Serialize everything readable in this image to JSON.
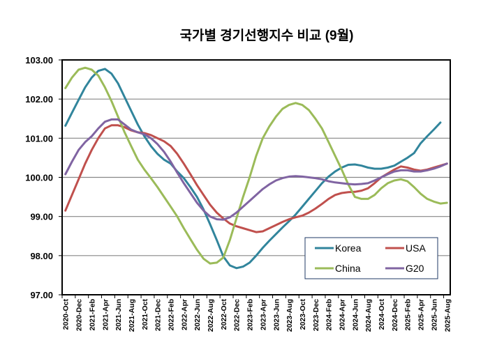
{
  "chart_data": {
    "type": "line",
    "title": "국가별 경기선행지수 비교 (9월)",
    "xlabel": "",
    "ylabel": "",
    "ylim": [
      97,
      103
    ],
    "yticks": [
      "97.00",
      "98.00",
      "99.00",
      "100.00",
      "101.00",
      "102.00",
      "103.00"
    ],
    "ytick_values": [
      97,
      98,
      99,
      100,
      101,
      102,
      103
    ],
    "grid": true,
    "legend_position": "bottom-right",
    "x": [
      "2020-Oct",
      "2020-Nov",
      "2020-Dec",
      "2021-Jan",
      "2021-Feb",
      "2021-Mar",
      "2021-Apr",
      "2021-May",
      "2021-Jun",
      "2021-Jul",
      "2021-Aug",
      "2021-Sep",
      "2021-Oct",
      "2021-Nov",
      "2021-Dec",
      "2022-Jan",
      "2022-Feb",
      "2022-Mar",
      "2022-Apr",
      "2022-May",
      "2022-Jun",
      "2022-Jul",
      "2022-Aug",
      "2022-Sep",
      "2022-Oct",
      "2022-Nov",
      "2022-Dec",
      "2023-Jan",
      "2023-Feb",
      "2023-Mar",
      "2023-Apr",
      "2023-May",
      "2023-Jun",
      "2023-Jul",
      "2023-Aug",
      "2023-Sep",
      "2023-Oct",
      "2023-Nov",
      "2023-Dec",
      "2024-Jan",
      "2024-Feb",
      "2024-Mar",
      "2024-Apr",
      "2024-May",
      "2024-Jun",
      "2024-Jul",
      "2024-Aug",
      "2024-Sep",
      "2024-Oct",
      "2024-Nov",
      "2024-Dec",
      "2025-Jan",
      "2025-Feb",
      "2025-Mar",
      "2025-Apr",
      "2025-May",
      "2025-Jun",
      "2025-Jul",
      "2025-Aug"
    ],
    "xtick_labels": [
      "2020-Oct",
      "2020-Dec",
      "2021-Feb",
      "2021-Apr",
      "2021-Jun",
      "2021-Aug",
      "2021-Oct",
      "2021-Dec",
      "2022-Feb",
      "2022-Apr",
      "2022-Jun",
      "2022-Aug",
      "2022-Oct",
      "2022-Dec",
      "2023-Feb",
      "2023-Apr",
      "2023-Jun",
      "2023-Aug",
      "2023-Oct",
      "2023-Dec",
      "2024-Feb",
      "2024-Apr",
      "2024-Jun",
      "2024-Aug",
      "2024-Oct",
      "2024-Dec",
      "2025-Feb",
      "2025-Apr",
      "2025-Jun",
      "2025-Aug"
    ],
    "series": [
      {
        "name": "Korea",
        "color": "#31859C",
        "values": [
          101.32,
          101.65,
          101.98,
          102.3,
          102.55,
          102.72,
          102.77,
          102.65,
          102.4,
          102.05,
          101.7,
          101.35,
          101.05,
          100.8,
          100.6,
          100.45,
          100.35,
          100.15,
          99.98,
          99.75,
          99.5,
          99.18,
          98.8,
          98.4,
          97.98,
          97.75,
          97.68,
          97.72,
          97.82,
          98.0,
          98.2,
          98.38,
          98.55,
          98.72,
          98.88,
          99.05,
          99.25,
          99.45,
          99.65,
          99.85,
          100.02,
          100.15,
          100.25,
          100.32,
          100.33,
          100.3,
          100.25,
          100.22,
          100.22,
          100.25,
          100.3,
          100.4,
          100.5,
          100.62,
          100.87,
          101.05,
          101.22,
          101.4,
          null
        ]
      },
      {
        "name": "USA",
        "color": "#C0504D",
        "values": [
          99.15,
          99.55,
          99.95,
          100.35,
          100.7,
          101.0,
          101.25,
          101.33,
          101.33,
          101.28,
          101.2,
          101.15,
          101.13,
          101.08,
          101.0,
          100.92,
          100.8,
          100.6,
          100.35,
          100.08,
          99.8,
          99.55,
          99.3,
          99.1,
          98.95,
          98.82,
          98.75,
          98.7,
          98.65,
          98.6,
          98.62,
          98.7,
          98.78,
          98.86,
          98.93,
          98.98,
          99.02,
          99.1,
          99.2,
          99.32,
          99.45,
          99.55,
          99.6,
          99.62,
          99.63,
          99.66,
          99.72,
          99.85,
          100.0,
          100.1,
          100.2,
          100.28,
          100.25,
          100.2,
          100.17,
          100.2,
          100.25,
          100.3,
          100.35
        ]
      },
      {
        "name": "China",
        "color": "#9BBB59",
        "values": [
          102.28,
          102.55,
          102.75,
          102.8,
          102.75,
          102.6,
          102.3,
          101.95,
          101.55,
          101.15,
          100.8,
          100.45,
          100.2,
          99.98,
          99.75,
          99.5,
          99.25,
          99.0,
          98.7,
          98.42,
          98.15,
          97.92,
          97.8,
          97.82,
          97.95,
          98.4,
          98.95,
          99.5,
          100.0,
          100.55,
          101.0,
          101.3,
          101.55,
          101.75,
          101.85,
          101.9,
          101.85,
          101.72,
          101.5,
          101.25,
          100.9,
          100.55,
          100.2,
          99.82,
          99.5,
          99.45,
          99.45,
          99.55,
          99.72,
          99.85,
          99.92,
          99.95,
          99.9,
          99.75,
          99.58,
          99.45,
          99.38,
          99.33,
          99.35
        ]
      },
      {
        "name": "G20",
        "color": "#8064A2",
        "values": [
          100.08,
          100.4,
          100.7,
          100.9,
          101.05,
          101.25,
          101.42,
          101.48,
          101.48,
          101.35,
          101.22,
          101.15,
          101.1,
          101.0,
          100.85,
          100.65,
          100.4,
          100.12,
          99.85,
          99.6,
          99.35,
          99.15,
          99.0,
          98.93,
          98.92,
          98.98,
          99.1,
          99.25,
          99.4,
          99.55,
          99.7,
          99.82,
          99.92,
          99.98,
          100.02,
          100.03,
          100.02,
          100.0,
          99.98,
          99.95,
          99.9,
          99.87,
          99.85,
          99.83,
          99.82,
          99.83,
          99.85,
          99.92,
          100.0,
          100.08,
          100.15,
          100.18,
          100.18,
          100.15,
          100.15,
          100.18,
          100.22,
          100.28,
          100.35
        ]
      }
    ]
  }
}
